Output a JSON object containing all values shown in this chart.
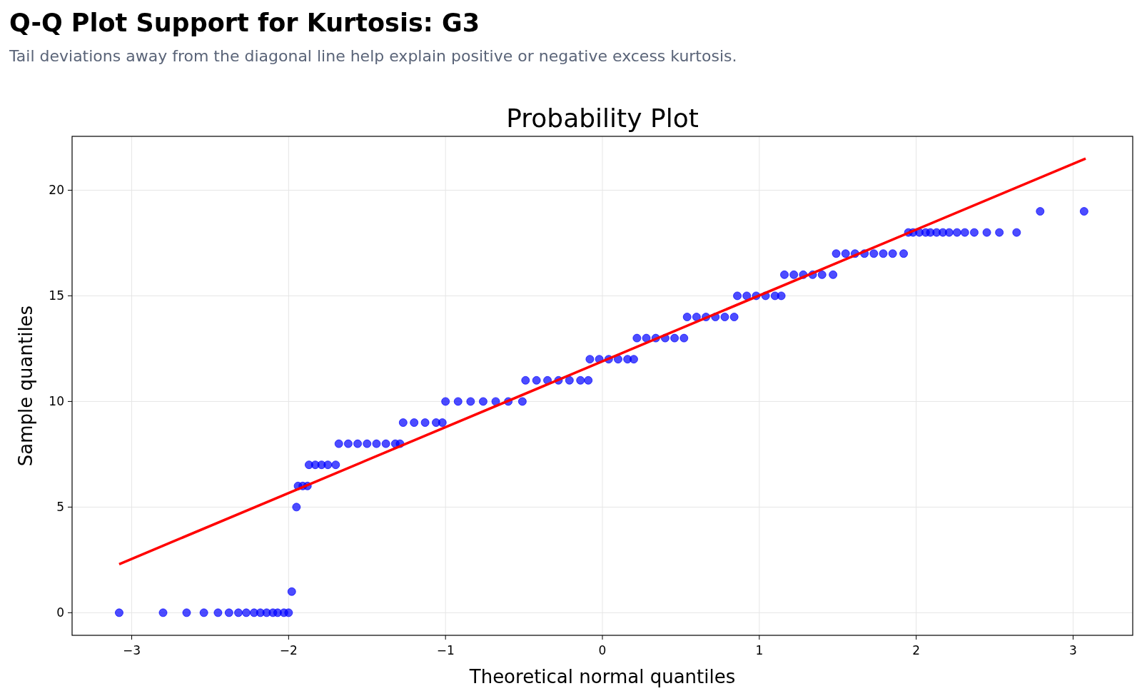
{
  "chart_data": {
    "type": "scatter",
    "title": "Q-Q Plot Support for Kurtosis: G3",
    "subtitle": "Tail deviations away from the diagonal line help explain positive or negative excess kurtosis.",
    "annotations": [
      "Probability Plot"
    ],
    "xlabel": "Theoretical normal quantiles",
    "ylabel": "Sample quantiles",
    "xlim": [
      -3.38,
      3.38
    ],
    "ylim": [
      -1.07,
      22.55
    ],
    "xticks": [
      {
        "value": -3,
        "label": "−3"
      },
      {
        "value": -2,
        "label": "−2"
      },
      {
        "value": -1,
        "label": "−1"
      },
      0,
      1,
      2,
      3
    ],
    "yticks": [
      0,
      5,
      10,
      15,
      20
    ],
    "grid": true,
    "series": [
      {
        "marker": "circle",
        "color": "#0000ff",
        "x": [
          -3.08,
          -2.8,
          -2.65,
          -2.54,
          -2.45,
          -2.38,
          -2.32,
          -2.27,
          -2.22,
          -2.18,
          -2.14,
          -2.1,
          -2.07,
          -2.03,
          -2.0,
          -1.98,
          -1.95,
          -1.94,
          -1.91,
          -1.88,
          -1.87,
          -1.83,
          -1.79,
          -1.75,
          -1.7,
          -1.68,
          -1.62,
          -1.56,
          -1.5,
          -1.44,
          -1.38,
          -1.32,
          -1.29,
          -1.27,
          -1.2,
          -1.13,
          -1.06,
          -1.02,
          -1.0,
          -0.92,
          -0.84,
          -0.76,
          -0.68,
          -0.6,
          -0.51,
          -0.49,
          -0.42,
          -0.35,
          -0.28,
          -0.21,
          -0.14,
          -0.09,
          -0.08,
          -0.02,
          0.04,
          0.1,
          0.16,
          0.2,
          0.22,
          0.28,
          0.34,
          0.4,
          0.46,
          0.52,
          0.54,
          0.6,
          0.66,
          0.72,
          0.78,
          0.84,
          0.86,
          0.92,
          0.98,
          1.04,
          1.1,
          1.14,
          1.16,
          1.22,
          1.28,
          1.34,
          1.4,
          1.47,
          1.49,
          1.55,
          1.61,
          1.67,
          1.73,
          1.79,
          1.85,
          1.92,
          1.95,
          1.98,
          2.02,
          2.06,
          2.09,
          2.13,
          2.17,
          2.21,
          2.26,
          2.31,
          2.37,
          2.45,
          2.53,
          2.64,
          2.79,
          3.07
        ],
        "values": [
          0,
          0,
          0,
          0,
          0,
          0,
          0,
          0,
          0,
          0,
          0,
          0,
          0,
          0,
          0,
          1,
          5,
          6,
          6,
          6,
          7,
          7,
          7,
          7,
          7,
          8,
          8,
          8,
          8,
          8,
          8,
          8,
          8,
          9,
          9,
          9,
          9,
          9,
          10,
          10,
          10,
          10,
          10,
          10,
          10,
          11,
          11,
          11,
          11,
          11,
          11,
          11,
          12,
          12,
          12,
          12,
          12,
          12,
          13,
          13,
          13,
          13,
          13,
          13,
          14,
          14,
          14,
          14,
          14,
          14,
          15,
          15,
          15,
          15,
          15,
          15,
          16,
          16,
          16,
          16,
          16,
          16,
          17,
          17,
          17,
          17,
          17,
          17,
          17,
          17,
          18,
          18,
          18,
          18,
          18,
          18,
          18,
          18,
          18,
          18,
          18,
          18,
          18,
          18,
          19,
          19
        ]
      },
      {
        "type": "line",
        "marker": "none",
        "color": "#ff0000",
        "x": [
          -3.08,
          3.08
        ],
        "values": [
          2.3,
          21.5
        ]
      }
    ]
  }
}
